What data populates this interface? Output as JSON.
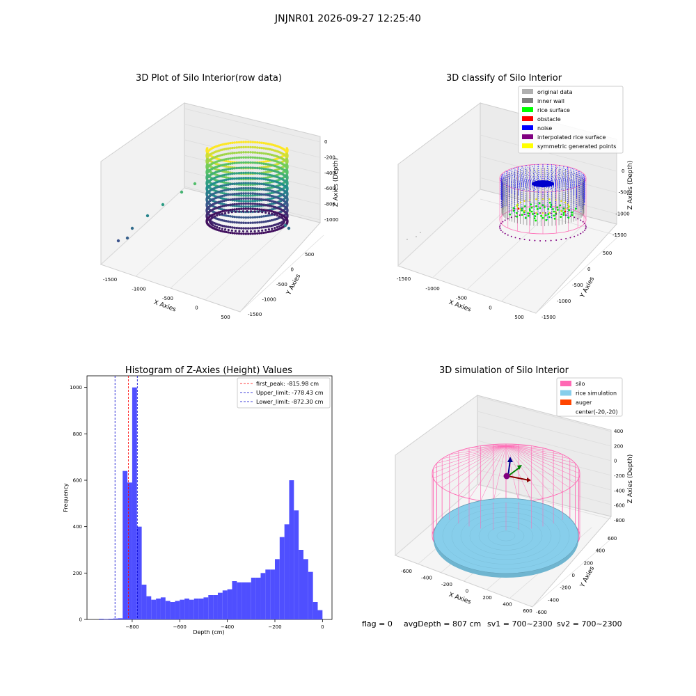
{
  "suptitle": "JNJNR01 2026-09-27 12:25:40",
  "footer": {
    "flag": "flag = 0",
    "avg_depth": "avgDepth = 807 cm",
    "sv1": "sv1 = 700~2300",
    "sv2": "sv2 = 700~2300"
  },
  "chart_data": [
    {
      "type": "scatter",
      "title": "3D Plot of Silo Interior(row data)",
      "xlabel": "X Axies",
      "ylabel": "Y Axies",
      "zlabel": "Z Axies (Depth)",
      "xticks": [
        "-1500",
        "-1000",
        "-500",
        "0",
        "500"
      ],
      "yticks": [
        "500",
        "0",
        "-500",
        "-1000",
        "-1500"
      ],
      "zticks": [
        "0",
        "-200",
        "-400",
        "-600",
        "-800",
        "-1000"
      ],
      "colormap": "viridis"
    },
    {
      "type": "scatter",
      "title": "3D classify of Silo Interior",
      "xlabel": "X Axies",
      "ylabel": "Y Axies",
      "zlabel": "Z Axies (Depth)",
      "xticks": [
        "-1500",
        "-1000",
        "-500",
        "0",
        "500"
      ],
      "yticks": [
        "500",
        "0",
        "-500",
        "-1000",
        "-1500"
      ],
      "zticks": [
        "0",
        "-500",
        "-1000",
        "-1500"
      ],
      "legend": [
        {
          "label": "original data",
          "color": "#b0b0b0"
        },
        {
          "label": "inner wall",
          "color": "#808080"
        },
        {
          "label": "rice surface",
          "color": "#00ff00"
        },
        {
          "label": "obstacle",
          "color": "#ff0000"
        },
        {
          "label": "noise",
          "color": "#0000ff"
        },
        {
          "label": "interpolated rice surface",
          "color": "#800080"
        },
        {
          "label": "symmetric generated points",
          "color": "#ffff00"
        }
      ]
    },
    {
      "type": "bar",
      "title": "Histogram of Z-Axies (Height) Values",
      "xlabel": "Depth (cm)",
      "ylabel": "Frequency",
      "xlim": [
        -990,
        40
      ],
      "ylim": [
        0,
        1050
      ],
      "xticks": [
        -800,
        -600,
        -400,
        -200,
        0
      ],
      "yticks": [
        0,
        200,
        400,
        600,
        800,
        1000
      ],
      "bin_start": -940,
      "bin_width": 20,
      "values": [
        3,
        2,
        3,
        4,
        5,
        640,
        590,
        1000,
        400,
        150,
        100,
        85,
        90,
        95,
        80,
        75,
        80,
        85,
        90,
        85,
        90,
        90,
        95,
        105,
        105,
        115,
        125,
        130,
        165,
        160,
        160,
        160,
        180,
        180,
        200,
        215,
        215,
        260,
        355,
        410,
        600,
        470,
        300,
        260,
        205,
        75,
        40
      ],
      "bar_color": "#4b4bff",
      "vlines": [
        {
          "label": "first_peak: -815.98 cm",
          "value": -815.98,
          "color": "#ff0000"
        },
        {
          "label": "Upper_limit: -778.43 cm",
          "value": -778.43,
          "color": "#0000cc"
        },
        {
          "label": "Lower_limit: -872.30 cm",
          "value": -872.3,
          "color": "#0000cc"
        }
      ],
      "legend_position": "top-right"
    },
    {
      "type": "scatter",
      "title": "3D simulation of Silo Interior",
      "xlabel": "X Axies",
      "ylabel": "Y Axies",
      "zlabel": "Z Axies (Depth)",
      "xticks": [
        "-600",
        "-400",
        "-200",
        "0",
        "200",
        "400",
        "600"
      ],
      "yticks": [
        "600",
        "400",
        "200",
        "0",
        "-200",
        "-400",
        "-600"
      ],
      "zticks": [
        "400",
        "200",
        "0",
        "-200",
        "-400",
        "-600",
        "-800"
      ],
      "legend": [
        {
          "label": "silo",
          "color": "#ff69b4"
        },
        {
          "label": "rice simulation",
          "color": "#87ceeb"
        },
        {
          "label": "auger",
          "color": "#ff4500"
        },
        {
          "label": "center(-20,-20)",
          "color": "#ffffff"
        }
      ]
    }
  ]
}
